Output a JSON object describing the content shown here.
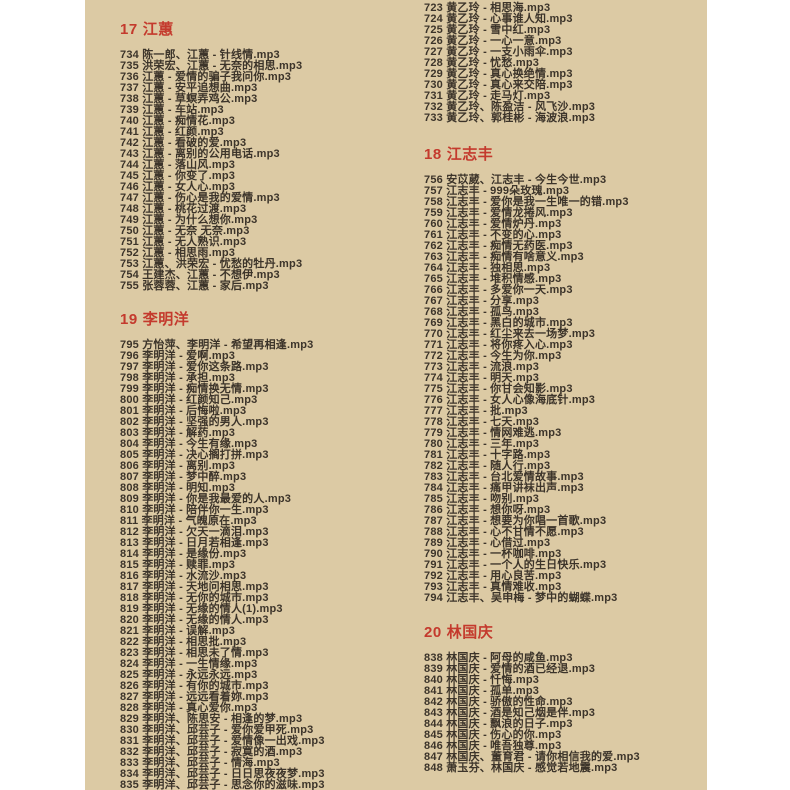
{
  "page": {
    "bg_color": "#dccaa4",
    "margin_color": "#ffffff",
    "text_color": "#3c342a",
    "header_color": "#c43a2d"
  },
  "sections": {
    "huang_cont": {
      "items": [
        "723 黄乙玲 - 相思海.mp3",
        "724 黄乙玲 - 心事谁人知.mp3",
        "725 黄乙玲 - 雪中红.mp3",
        "726 黄乙玲 - 一心一意.mp3",
        "727 黄乙玲 - 一支小雨伞.mp3",
        "728 黄乙玲 - 忧愁.mp3",
        "729 黄乙玲 - 真心换绝情.mp3",
        "730 黄乙玲 - 真心来交陪.mp3",
        "731 黄乙玲 - 走马灯.mp3",
        "732 黄乙玲、陈盈洁 - 风飞沙.mp3",
        "733 黄乙玲、郭桂彬 - 海波浪.mp3"
      ]
    },
    "s17": {
      "num": "17",
      "name": "江蕙",
      "items": [
        "734 陈一郎、江蕙 - 针线情.mp3",
        "735 洪荣宏、江蕙 - 无奈的相思.mp3",
        "736 江蕙 - 爱情的骗子我问你.mp3",
        "737 江蕙 - 安平追想曲.mp3",
        "738 江蕙 - 草螟弄鸡公.mp3",
        "739 江蕙 - 车站.mp3",
        "740 江蕙 - 痴情花.mp3",
        "741 江蕙 - 红颜.mp3",
        "742 江蕙 - 看破的爱.mp3",
        "743 江蕙 - 离别的公用电话.mp3",
        "744 江蕙 - 落山风.mp3",
        "745 江蕙 - 你变了.mp3",
        "746 江蕙 - 女人心.mp3",
        "747 江蕙 - 伤心是我的爱情.mp3",
        "748 江蕙 - 桃花过渡.mp3",
        "749 江蕙 - 为什么想你.mp3",
        "750 江蕙 - 无奈 无奈.mp3",
        "751 江蕙 - 无人熟识.mp3",
        "752 江蕙 - 相思雨.mp3",
        "753 江蕙、洪荣宏 - 忧愁的牡丹.mp3",
        "754 王建杰、江蕙 - 不想伊.mp3",
        "755 张蓉蓉、江蕙 - 家后.mp3"
      ]
    },
    "s18": {
      "num": "18",
      "name": "江志丰",
      "items": [
        "756 安苡葳、江志丰 - 今生今世.mp3",
        "757 江志丰 - 999朵玫瑰.mp3",
        "758 江志丰 - 爱你是我一生唯一的错.mp3",
        "759 江志丰 - 爱情龙捲风.mp3",
        "760 江志丰 - 爱情炉丹.mp3",
        "761 江志丰 - 不变的心.mp3",
        "762 江志丰 - 痴情无药医.mp3",
        "763 江志丰 - 痴情有啥意义.mp3",
        "764 江志丰 - 独相思.mp3",
        "765 江志丰 - 堆积情感.mp3",
        "766 江志丰 - 多爱你一天.mp3",
        "767 江志丰 - 分享.mp3",
        "768 江志丰 - 孤鸟.mp3",
        "769 江志丰 - 黑白的城市.mp3",
        "770 江志丰 - 红尘来去一场梦.mp3",
        "771 江志丰 - 将你疼入心.mp3",
        "772 江志丰 - 今生为你.mp3",
        "773 江志丰 - 流浪.mp3",
        "774 江志丰 - 明天.mp3",
        "775 江志丰 - 你甘会知影.mp3",
        "776 江志丰 - 女人心像海底针.mp3",
        "777 江志丰 - 批.mp3",
        "778 江志丰 - 七天.mp3",
        "779 江志丰 - 情网难逃.mp3",
        "780 江志丰 - 三年.mp3",
        "781 江志丰 - 十字路.mp3",
        "782 江志丰 - 随人行.mp3",
        "783 江志丰 - 台北爱情故事.mp3",
        "784 江志丰 - 痛甲讲袜出声.mp3",
        "785 江志丰 - 吻别.mp3",
        "786 江志丰 - 想你呀.mp3",
        "787 江志丰 - 想要为你唱一首歌.mp3",
        "788 江志丰 - 心不甘情不愿.mp3",
        "789 江志丰 - 心借过.mp3",
        "790 江志丰 - 一杯咖啡.mp3",
        "791 江志丰 - 一个人的生日快乐.mp3",
        "792 江志丰 - 用心良苦.mp3",
        "793 江志丰 - 真情难收.mp3",
        "794 江志丰、吴申梅 - 梦中的蝴蝶.mp3"
      ]
    },
    "s19": {
      "num": "19",
      "name": "李明洋",
      "items": [
        "795 方怡萍、李明洋 - 希望再相逢.mp3",
        "796 李明洋 - 爱啊.mp3",
        "797 李明洋 - 爱你这条路.mp3",
        "798 李明洋 - 承担.mp3",
        "799 李明洋 - 痴情换无情.mp3",
        "800 李明洋 - 红颜知己.mp3",
        "801 李明洋 - 后悔啦.mp3",
        "802 李明洋 - 坚强的男人.mp3",
        "803 李明洋 - 解药.mp3",
        "804 李明洋 - 今生有缘.mp3",
        "805 李明洋 - 决心搁打拼.mp3",
        "806 李明洋 - 离别.mp3",
        "807 李明洋 - 梦中醉.mp3",
        "808 李明洋 - 明知.mp3",
        "809 李明洋 - 你是我最爱的人.mp3",
        "810 李明洋 - 陪伴你一生.mp3",
        "811 李明洋 - 气魄原在.mp3",
        "812 李明洋 - 欠天一滴泪.mp3",
        "813 李明洋 - 日月若相逢.mp3",
        "814 李明洋 - 是缘份.mp3",
        "815 李明洋 - 赎罪.mp3",
        "816 李明洋 - 水流沙.mp3",
        "817 李明洋 - 天地问相思.mp3",
        "818 李明洋 - 无你的城市.mp3",
        "819 李明洋 - 无缘的情人(1).mp3",
        "820 李明洋 - 无缘的情人.mp3",
        "821 李明洋 - 误解.mp3",
        "822 李明洋 - 相思批.mp3",
        "823 李明洋 - 相思未了情.mp3",
        "824 李明洋 - 一生情缘.mp3",
        "825 李明洋 - 永远永远.mp3",
        "826 李明洋 - 有你的城市.mp3",
        "827 李明洋 - 远远看着妳.mp3",
        "828 李明洋 - 真心爱你.mp3",
        "829 李明洋、陈思安 - 相逢的梦.mp3",
        "830 李明洋、邱芸子 - 爱你爱甲死.mp3",
        "831 李明洋、邱芸子 - 爱情像一出戏.mp3",
        "832 李明洋、邱芸子 - 寂寞的酒.mp3",
        "833 李明洋、邱芸子 - 情海.mp3",
        "834 李明洋、邱芸子 - 日日思夜夜梦.mp3",
        "835 李明洋、邱芸子 - 思念你的滋味.mp3"
      ]
    },
    "s20": {
      "num": "20",
      "name": "林国庆",
      "items": [
        "838 林国庆 - 阿母的咸鱼.mp3",
        "839 林国庆 - 爱情的酒已经退.mp3",
        "840 林国庆 - 忏悔.mp3",
        "841 林国庆 - 孤单.mp3",
        "842 林国庆 - 骄傲的性命.mp3",
        "843 林国庆 - 酒是知己烟是伴.mp3",
        "844 林国庆 - 飘浪的日子.mp3",
        "845 林国庆 - 伤心的你.mp3",
        "846 林国庆 - 唯吾独尊.mp3",
        "847 林国庆、董育君 - 请你相信我的爱.mp3",
        "848 萧玉芬、林国庆 - 感觉若地震.mp3"
      ]
    }
  }
}
